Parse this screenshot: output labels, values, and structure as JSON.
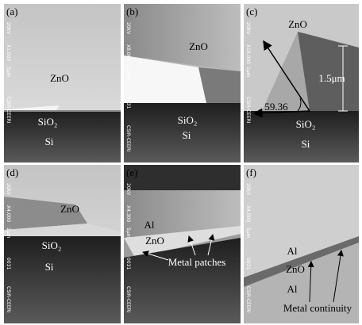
{
  "panels": [
    {
      "label": "(a)",
      "sidebar": [
        "20kV",
        "X1,000",
        "5µm",
        "CSIR-CEERI"
      ],
      "annotations": [
        "ZnO",
        "SiO₂",
        "Si"
      ]
    },
    {
      "label": "(b)",
      "sidebar": [
        "20kV",
        "X8,000",
        "1µm",
        "0031",
        "CSIR-CEERI"
      ],
      "annotations": [
        "ZnO",
        "SiO₂",
        "Si"
      ]
    },
    {
      "label": "(c)",
      "sidebar": [
        "20kV",
        "X18,000",
        "1µm",
        "CSIR-CEERI"
      ],
      "annotations": [
        "ZnO",
        "1.5μm",
        "59.36",
        "SiO₂",
        "Si"
      ]
    },
    {
      "label": "(d)",
      "sidebar": [
        "20kV",
        "X4,000",
        "2µm",
        "0031",
        "CSIR-CEERI"
      ],
      "annotations": [
        "ZnO",
        "SiO₂",
        "Si"
      ]
    },
    {
      "label": "(e)",
      "sidebar": [
        "20kV",
        "X4,300",
        "5µm",
        "0031",
        "CSIR-CEERI"
      ],
      "annotations": [
        "Al",
        "ZnO",
        "Metal patches"
      ]
    },
    {
      "label": "(f)",
      "sidebar": [
        "20kV",
        "X4,000",
        "5µm",
        "0031",
        "CSIR-CEERI"
      ],
      "annotations": [
        "Al",
        "ZnO",
        "Al",
        "Metal continuity"
      ]
    }
  ]
}
